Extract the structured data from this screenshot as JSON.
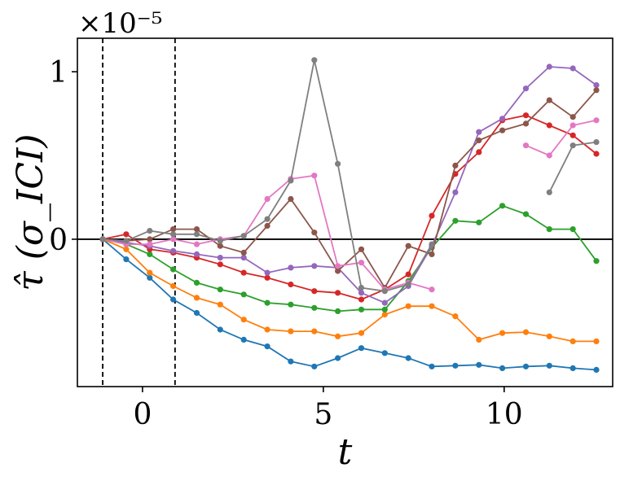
{
  "chart_data": {
    "type": "line",
    "xlabel": "t",
    "ylabel": "τ̂ (σ_ICI)",
    "y_multiplier": "×10⁻⁵",
    "xlim": [
      -1.8,
      13.0
    ],
    "ylim": [
      -0.88,
      1.2
    ],
    "xticks": [
      0,
      5,
      10
    ],
    "xtick_labels": [
      "0",
      "5",
      "10"
    ],
    "yticks": [
      0,
      1
    ],
    "ytick_labels": [
      "0",
      "1"
    ],
    "grid": false,
    "legend": "none",
    "hlines": [
      {
        "y": 0,
        "color": "#000000",
        "style": "solid"
      }
    ],
    "vlines": [
      {
        "x": -1.1,
        "color": "#000000",
        "style": "dashed"
      },
      {
        "x": 0.9,
        "color": "#000000",
        "style": "dashed"
      }
    ],
    "x": [
      -1.1,
      -0.45,
      0.2,
      0.85,
      1.5,
      2.15,
      2.8,
      3.45,
      4.1,
      4.75,
      5.4,
      6.05,
      6.7,
      7.35,
      8.0,
      8.65,
      9.3,
      9.95,
      10.6,
      11.25,
      11.9,
      12.55
    ],
    "series": [
      {
        "color": "#1f77b4",
        "values": [
          0.0,
          -0.12,
          -0.23,
          -0.36,
          -0.44,
          -0.54,
          -0.6,
          -0.64,
          -0.73,
          -0.76,
          -0.71,
          -0.65,
          -0.68,
          -0.71,
          -0.76,
          -0.755,
          -0.75,
          -0.77,
          -0.76,
          -0.755,
          -0.77,
          -0.78
        ]
      },
      {
        "color": "#ff7f0e",
        "values": [
          0.0,
          -0.06,
          -0.2,
          -0.28,
          -0.35,
          -0.39,
          -0.48,
          -0.54,
          -0.55,
          -0.55,
          -0.58,
          -0.56,
          -0.45,
          -0.4,
          -0.4,
          -0.46,
          -0.6,
          -0.56,
          -0.555,
          -0.58,
          -0.61,
          -0.61
        ]
      },
      {
        "color": "#2ca02c",
        "values": [
          0.0,
          -0.03,
          -0.09,
          -0.18,
          -0.26,
          -0.3,
          -0.33,
          -0.38,
          -0.39,
          -0.41,
          -0.43,
          -0.42,
          -0.42,
          -0.25,
          -0.05,
          0.11,
          0.1,
          0.2,
          0.15,
          0.06,
          0.06,
          -0.13
        ]
      },
      {
        "color": "#d62728",
        "values": [
          0.0,
          0.03,
          -0.06,
          -0.08,
          -0.11,
          -0.15,
          -0.2,
          -0.23,
          -0.27,
          -0.31,
          -0.32,
          -0.36,
          -0.3,
          -0.21,
          0.14,
          0.39,
          0.52,
          0.71,
          0.74,
          0.68,
          0.62,
          0.51
        ]
      },
      {
        "color": "#9467bd",
        "values": [
          0.0,
          -0.02,
          -0.04,
          -0.07,
          -0.09,
          -0.11,
          -0.11,
          -0.2,
          -0.17,
          -0.16,
          -0.17,
          -0.32,
          -0.38,
          -0.28,
          -0.04,
          0.28,
          0.64,
          0.72,
          0.9,
          1.03,
          1.02,
          0.92
        ]
      },
      {
        "color": "#8c564b",
        "values": [
          0.0,
          -0.01,
          0.0,
          0.06,
          0.06,
          -0.04,
          -0.08,
          0.08,
          0.24,
          0.04,
          -0.19,
          -0.06,
          -0.29,
          -0.04,
          -0.09,
          0.44,
          0.59,
          0.65,
          0.69,
          0.83,
          0.73,
          0.89
        ]
      },
      {
        "color": "#e377c2",
        "values": [
          0.0,
          -0.03,
          -0.03,
          0.0,
          -0.03,
          0.0,
          0.02,
          0.24,
          0.36,
          0.38,
          -0.16,
          -0.14,
          -0.3,
          -0.26,
          -0.3,
          null,
          null,
          null,
          0.56,
          0.5,
          0.68,
          0.71
        ]
      },
      {
        "color": "#7f7f7f",
        "values": [
          0.0,
          -0.01,
          0.05,
          0.03,
          0.03,
          -0.01,
          0.02,
          0.12,
          0.35,
          1.07,
          0.45,
          -0.29,
          -0.31,
          -0.27,
          -0.03,
          null,
          null,
          null,
          null,
          0.28,
          0.56,
          0.58
        ]
      }
    ]
  }
}
